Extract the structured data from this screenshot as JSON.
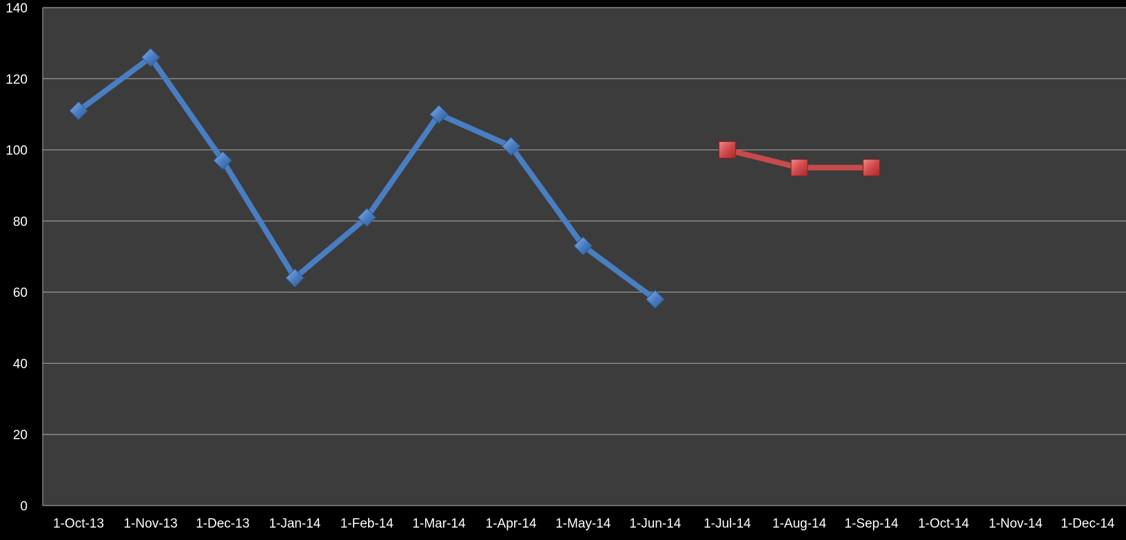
{
  "chart_data": {
    "type": "line",
    "title": "",
    "xlabel": "",
    "ylabel": "",
    "categories": [
      "1-Oct-13",
      "1-Nov-13",
      "1-Dec-13",
      "1-Jan-14",
      "1-Feb-14",
      "1-Mar-14",
      "1-Apr-14",
      "1-May-14",
      "1-Jun-14",
      "1-Jul-14",
      "1-Aug-14",
      "1-Sep-14",
      "1-Oct-14",
      "1-Nov-14",
      "1-Dec-14"
    ],
    "ylim": [
      0,
      140
    ],
    "yticks": [
      0,
      20,
      40,
      60,
      80,
      100,
      120,
      140
    ],
    "grid": true,
    "legend": "none",
    "series": [
      {
        "marker": "diamond",
        "color": "#4a7ec2",
        "values": [
          111,
          126,
          97,
          64,
          81,
          110,
          101,
          73,
          58,
          null,
          null,
          null,
          null,
          null,
          null
        ]
      },
      {
        "marker": "square",
        "color": "#c94a4a",
        "values": [
          null,
          null,
          null,
          null,
          null,
          null,
          null,
          null,
          null,
          100,
          95,
          95,
          null,
          null,
          null
        ]
      }
    ]
  },
  "colors": {
    "page_background": "#000000",
    "plot_background": "#3c3c3c",
    "gridline": "#9a9a9a",
    "text": "#ffffff"
  }
}
